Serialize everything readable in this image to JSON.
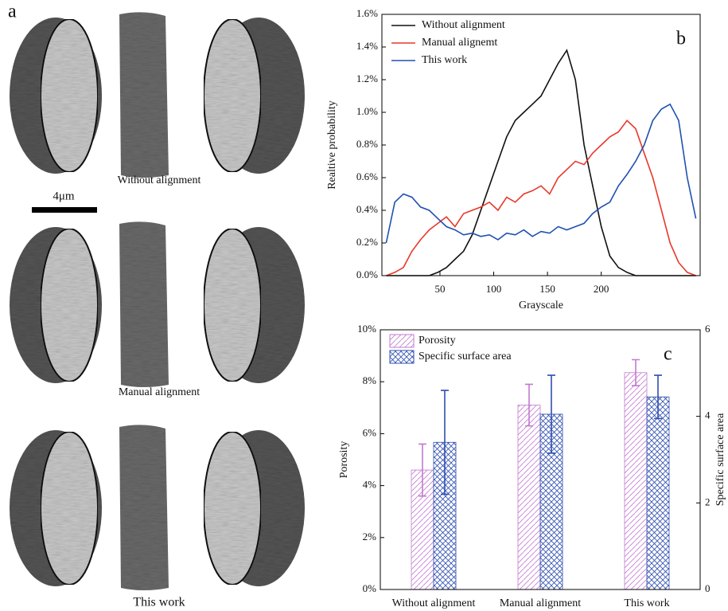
{
  "panel_a": {
    "label": "a",
    "scale_bar": "4μm",
    "captions": [
      "Without alignment",
      "Manual alignment",
      "This work"
    ]
  },
  "chart_data": [
    {
      "type": "line",
      "label": "b",
      "xlabel": "Grayscale",
      "ylabel": "Realtive probability",
      "xlim": [
        -4,
        292
      ],
      "xticks": [
        50,
        100,
        150,
        200
      ],
      "ylim": [
        0,
        1.6
      ],
      "yticks": [
        {
          "value": 0,
          "label": "0.0%"
        },
        {
          "value": 0.2,
          "label": "0.2%"
        },
        {
          "value": 0.4,
          "label": "0.4%"
        },
        {
          "value": 0.6,
          "label": "0.6%"
        },
        {
          "value": 0.8,
          "label": "0.8%"
        },
        {
          "value": 1.0,
          "label": "1.0%"
        },
        {
          "value": 1.2,
          "label": "1.2%"
        },
        {
          "value": 1.4,
          "label": "1.4%"
        },
        {
          "value": 1.6,
          "label": "1.6%"
        }
      ],
      "legend": "upper left",
      "x": [
        0,
        8,
        16,
        24,
        32,
        40,
        48,
        56,
        64,
        72,
        80,
        88,
        96,
        104,
        112,
        120,
        128,
        136,
        144,
        152,
        160,
        168,
        176,
        184,
        192,
        200,
        208,
        216,
        224,
        232,
        240,
        248,
        256,
        264,
        272,
        280,
        288
      ],
      "series": [
        {
          "name": "Without alignment",
          "color": "#111111",
          "values": [
            0,
            0,
            0,
            0,
            0,
            0,
            0.02,
            0.05,
            0.1,
            0.15,
            0.25,
            0.4,
            0.55,
            0.7,
            0.85,
            0.95,
            1.0,
            1.05,
            1.1,
            1.2,
            1.3,
            1.38,
            1.2,
            0.8,
            0.55,
            0.3,
            0.12,
            0.05,
            0.02,
            0,
            0,
            0,
            0,
            0,
            0,
            0,
            0
          ]
        },
        {
          "name": "Manual alignemt",
          "color": "#e8392a",
          "values": [
            0,
            0.02,
            0.05,
            0.15,
            0.22,
            0.28,
            0.32,
            0.36,
            0.3,
            0.38,
            0.4,
            0.42,
            0.45,
            0.4,
            0.48,
            0.45,
            0.5,
            0.52,
            0.55,
            0.5,
            0.6,
            0.65,
            0.7,
            0.68,
            0.75,
            0.8,
            0.85,
            0.88,
            0.95,
            0.9,
            0.75,
            0.6,
            0.4,
            0.2,
            0.08,
            0.02,
            0
          ]
        },
        {
          "name": "This work",
          "color": "#2050b0",
          "values": [
            0.2,
            0.45,
            0.5,
            0.48,
            0.42,
            0.4,
            0.35,
            0.3,
            0.28,
            0.25,
            0.26,
            0.24,
            0.25,
            0.22,
            0.26,
            0.25,
            0.28,
            0.24,
            0.27,
            0.26,
            0.3,
            0.28,
            0.3,
            0.32,
            0.38,
            0.42,
            0.45,
            0.55,
            0.62,
            0.7,
            0.8,
            0.95,
            1.02,
            1.05,
            0.95,
            0.6,
            0.35
          ]
        }
      ]
    },
    {
      "type": "bar",
      "label": "c",
      "ylabel": "Porosity",
      "y2label": "Specific surface area",
      "categories": [
        "Without alignment",
        "Manual alignment",
        "This work"
      ],
      "ylim": [
        0,
        10
      ],
      "yticks": [
        {
          "value": 0,
          "label": "0%"
        },
        {
          "value": 2,
          "label": "2%"
        },
        {
          "value": 4,
          "label": "4%"
        },
        {
          "value": 6,
          "label": "6%"
        },
        {
          "value": 8,
          "label": "8%"
        },
        {
          "value": 10,
          "label": "10%"
        }
      ],
      "y2lim": [
        0,
        6
      ],
      "y2ticks": [
        0,
        2,
        4,
        6
      ],
      "legend": "upper left",
      "series": [
        {
          "name": "Porosity",
          "color": "#c27ad0",
          "values": [
            4.6,
            7.1,
            8.35
          ],
          "errors": [
            1.0,
            0.8,
            0.5
          ]
        },
        {
          "name": "Specific surface area",
          "color": "#2f4fb0",
          "axis": "y2",
          "values": [
            3.4,
            4.05,
            4.45
          ],
          "errors": [
            1.2,
            0.9,
            0.5
          ]
        }
      ]
    }
  ]
}
